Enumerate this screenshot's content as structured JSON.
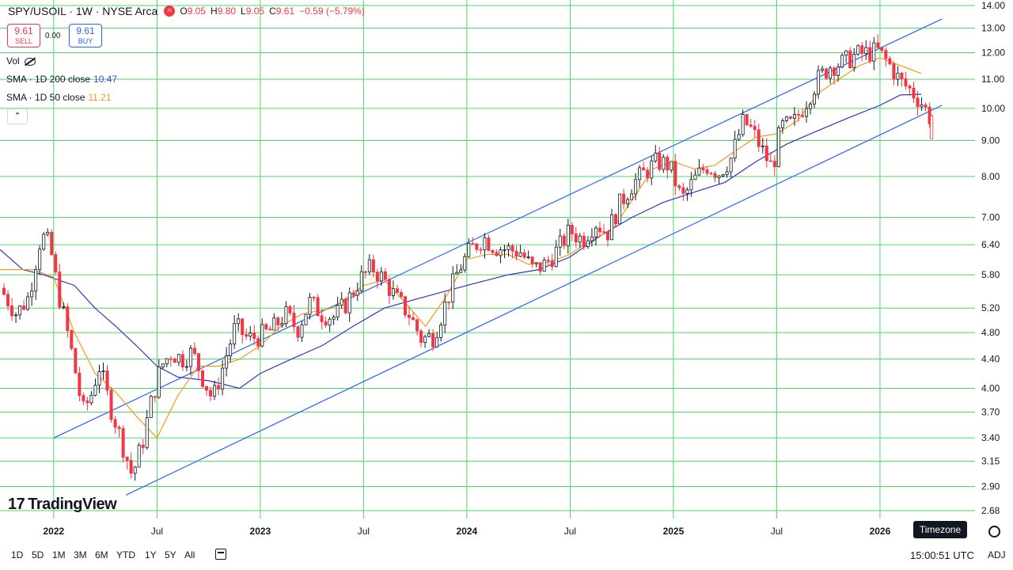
{
  "header": {
    "symbol": "SPY/USOIL · 1W · NYSE Arca",
    "live_glyph": "≈",
    "open_label": "O",
    "open": "9.05",
    "high_label": "H",
    "high": "9.80",
    "low_label": "L",
    "low": "9.05",
    "close_label": "C",
    "close": "9.61",
    "change": "−0.59 (−5.79%)"
  },
  "trade": {
    "sell_price": "9.61",
    "sell_label": "SELL",
    "spread": "0.00",
    "buy_price": "9.61",
    "buy_label": "BUY"
  },
  "legend": {
    "vol": "Vol",
    "sma200_label": "SMA · 1D 200 close",
    "sma200_value": "10.47",
    "sma50_label": "SMA · 1D 50 close",
    "sma50_value": "11.21",
    "collapse_glyph": "⌃"
  },
  "brand": {
    "mark": "17",
    "name": "TradingView"
  },
  "bottom": {
    "timeframes": [
      "1D",
      "5D",
      "1M",
      "3M",
      "6M",
      "YTD",
      "1Y",
      "5Y",
      "All"
    ],
    "clock": "15:00:51 UTC",
    "adj": "ADJ",
    "timezone_tooltip": "Timezone"
  },
  "colors": {
    "up": "#131722",
    "down": "#f23645",
    "grid": "#4cd964",
    "sma50": "#f19b16",
    "sma200": "#3b2fc9",
    "channel": "#2962ff"
  },
  "chart_data": {
    "type": "candlestick",
    "scale": "log",
    "ylim": [
      2.68,
      14.0
    ],
    "y_ticks": [
      14.0,
      13.0,
      12.0,
      11.0,
      10.0,
      9.0,
      8.0,
      7.0,
      6.4,
      5.8,
      5.2,
      4.8,
      4.4,
      4.0,
      3.7,
      3.4,
      3.15,
      2.9,
      2.68
    ],
    "x_ticks": [
      {
        "label": "2022",
        "t": 2022.0
      },
      {
        "label": "Jul",
        "t": 2022.5
      },
      {
        "label": "2023",
        "t": 2023.0
      },
      {
        "label": "Jul",
        "t": 2023.5
      },
      {
        "label": "2024",
        "t": 2024.0
      },
      {
        "label": "Jul",
        "t": 2024.5
      },
      {
        "label": "2025",
        "t": 2025.0
      },
      {
        "label": "Jul",
        "t": 2025.5
      },
      {
        "label": "2026",
        "t": 2026.0
      }
    ],
    "xlim": [
      2021.74,
      2026.46
    ],
    "last_price": "9.61",
    "channel_upper": [
      [
        2022.0,
        3.4
      ],
      [
        2026.3,
        13.4
      ]
    ],
    "channel_lower": [
      [
        2022.35,
        2.82
      ],
      [
        2026.3,
        10.1
      ]
    ],
    "sma50_points": [
      [
        2021.74,
        5.9
      ],
      [
        2021.9,
        5.9
      ],
      [
        2022.0,
        5.75
      ],
      [
        2022.1,
        4.8
      ],
      [
        2022.2,
        4.2
      ],
      [
        2022.3,
        3.95
      ],
      [
        2022.4,
        3.65
      ],
      [
        2022.5,
        3.4
      ],
      [
        2022.6,
        3.9
      ],
      [
        2022.7,
        4.3
      ],
      [
        2022.8,
        4.3
      ],
      [
        2022.9,
        4.4
      ],
      [
        2023.0,
        4.6
      ],
      [
        2023.1,
        4.9
      ],
      [
        2023.2,
        5.1
      ],
      [
        2023.35,
        5.2
      ],
      [
        2023.5,
        5.6
      ],
      [
        2023.6,
        5.7
      ],
      [
        2023.7,
        5.3
      ],
      [
        2023.8,
        4.9
      ],
      [
        2023.9,
        5.4
      ],
      [
        2024.0,
        6.1
      ],
      [
        2024.1,
        6.2
      ],
      [
        2024.2,
        6.2
      ],
      [
        2024.3,
        6.0
      ],
      [
        2024.4,
        6.05
      ],
      [
        2024.5,
        6.2
      ],
      [
        2024.6,
        6.5
      ],
      [
        2024.7,
        6.7
      ],
      [
        2024.8,
        7.4
      ],
      [
        2024.9,
        8.2
      ],
      [
        2025.0,
        8.4
      ],
      [
        2025.1,
        8.2
      ],
      [
        2025.2,
        8.3
      ],
      [
        2025.3,
        8.7
      ],
      [
        2025.4,
        9.1
      ],
      [
        2025.5,
        9.2
      ],
      [
        2025.6,
        9.6
      ],
      [
        2025.7,
        10.5
      ],
      [
        2025.8,
        11.0
      ],
      [
        2025.9,
        11.5
      ],
      [
        2026.0,
        11.8
      ],
      [
        2026.1,
        11.5
      ],
      [
        2026.2,
        11.21
      ]
    ],
    "sma200_points": [
      [
        2021.74,
        6.3
      ],
      [
        2021.85,
        5.9
      ],
      [
        2021.95,
        5.8
      ],
      [
        2022.1,
        5.6
      ],
      [
        2022.2,
        5.2
      ],
      [
        2022.3,
        4.9
      ],
      [
        2022.4,
        4.6
      ],
      [
        2022.5,
        4.3
      ],
      [
        2022.6,
        4.15
      ],
      [
        2022.75,
        4.1
      ],
      [
        2022.9,
        4.0
      ],
      [
        2023.0,
        4.2
      ],
      [
        2023.15,
        4.4
      ],
      [
        2023.3,
        4.6
      ],
      [
        2023.45,
        4.9
      ],
      [
        2023.6,
        5.2
      ],
      [
        2023.75,
        5.35
      ],
      [
        2023.9,
        5.5
      ],
      [
        2024.05,
        5.65
      ],
      [
        2024.2,
        5.8
      ],
      [
        2024.35,
        5.9
      ],
      [
        2024.5,
        6.15
      ],
      [
        2024.65,
        6.6
      ],
      [
        2024.8,
        7.0
      ],
      [
        2024.95,
        7.35
      ],
      [
        2025.1,
        7.6
      ],
      [
        2025.25,
        7.85
      ],
      [
        2025.4,
        8.4
      ],
      [
        2025.55,
        8.9
      ],
      [
        2025.7,
        9.3
      ],
      [
        2025.85,
        9.7
      ],
      [
        2026.0,
        10.1
      ],
      [
        2026.1,
        10.45
      ],
      [
        2026.2,
        10.47
      ]
    ],
    "price_path": [
      [
        2021.74,
        5.55
      ],
      [
        2021.82,
        5.1
      ],
      [
        2021.88,
        5.4
      ],
      [
        2021.94,
        6.6
      ],
      [
        2021.98,
        6.4
      ],
      [
        2022.02,
        5.5
      ],
      [
        2022.08,
        4.6
      ],
      [
        2022.14,
        3.7
      ],
      [
        2022.18,
        3.9
      ],
      [
        2022.22,
        4.3
      ],
      [
        2022.27,
        3.8
      ],
      [
        2022.33,
        3.35
      ],
      [
        2022.38,
        3.0
      ],
      [
        2022.43,
        3.35
      ],
      [
        2022.47,
        3.8
      ],
      [
        2022.52,
        4.3
      ],
      [
        2022.57,
        4.5
      ],
      [
        2022.62,
        4.4
      ],
      [
        2022.67,
        4.5
      ],
      [
        2022.72,
        4.15
      ],
      [
        2022.77,
        3.85
      ],
      [
        2022.82,
        4.3
      ],
      [
        2022.88,
        4.9
      ],
      [
        2022.94,
        4.7
      ],
      [
        2023.0,
        4.75
      ],
      [
        2023.06,
        4.85
      ],
      [
        2023.12,
        5.1
      ],
      [
        2023.18,
        4.85
      ],
      [
        2023.24,
        5.3
      ],
      [
        2023.3,
        5.1
      ],
      [
        2023.36,
        5.05
      ],
      [
        2023.42,
        5.3
      ],
      [
        2023.48,
        5.7
      ],
      [
        2023.54,
        5.95
      ],
      [
        2023.6,
        5.7
      ],
      [
        2023.66,
        5.35
      ],
      [
        2023.72,
        5.1
      ],
      [
        2023.78,
        4.7
      ],
      [
        2023.84,
        4.75
      ],
      [
        2023.9,
        5.3
      ],
      [
        2023.96,
        5.9
      ],
      [
        2024.02,
        6.3
      ],
      [
        2024.08,
        6.55
      ],
      [
        2024.14,
        6.35
      ],
      [
        2024.2,
        6.3
      ],
      [
        2024.26,
        6.25
      ],
      [
        2024.32,
        5.9
      ],
      [
        2024.38,
        6.0
      ],
      [
        2024.44,
        6.3
      ],
      [
        2024.5,
        6.7
      ],
      [
        2024.56,
        6.5
      ],
      [
        2024.62,
        6.9
      ],
      [
        2024.68,
        6.65
      ],
      [
        2024.74,
        7.3
      ],
      [
        2024.8,
        7.8
      ],
      [
        2024.86,
        8.1
      ],
      [
        2024.92,
        8.4
      ],
      [
        2024.98,
        8.3
      ],
      [
        2025.04,
        7.4
      ],
      [
        2025.1,
        7.9
      ],
      [
        2025.16,
        8.3
      ],
      [
        2025.22,
        8.1
      ],
      [
        2025.28,
        8.5
      ],
      [
        2025.34,
        9.6
      ],
      [
        2025.38,
        9.3
      ],
      [
        2025.44,
        8.6
      ],
      [
        2025.48,
        8.2
      ],
      [
        2025.52,
        9.4
      ],
      [
        2025.58,
        9.5
      ],
      [
        2025.64,
        10.2
      ],
      [
        2025.7,
        11.0
      ],
      [
        2025.76,
        11.5
      ],
      [
        2025.82,
        11.6
      ],
      [
        2025.88,
        11.9
      ],
      [
        2025.94,
        12.0
      ],
      [
        2025.99,
        12.05
      ],
      [
        2026.04,
        11.6
      ],
      [
        2026.1,
        10.9
      ],
      [
        2026.15,
        10.6
      ],
      [
        2026.2,
        10.2
      ],
      [
        2026.25,
        9.61
      ]
    ]
  }
}
